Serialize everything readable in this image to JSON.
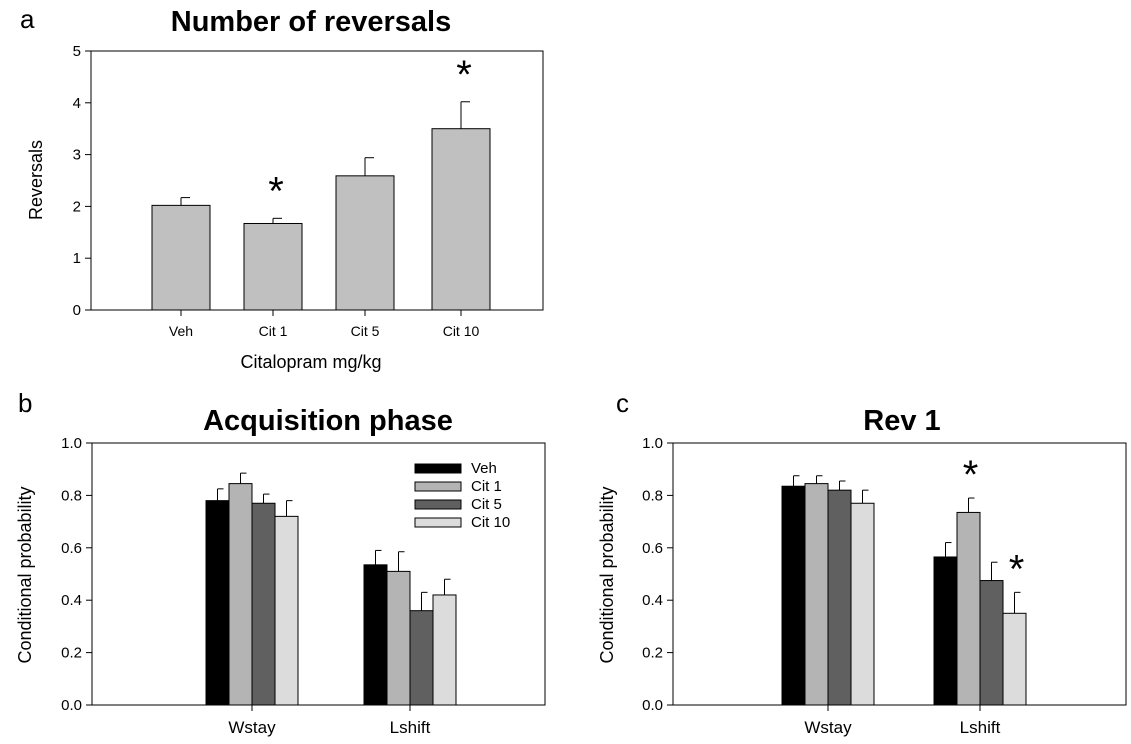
{
  "chart_data": [
    {
      "type": "bar",
      "panel": "a",
      "title": "Number of reversals",
      "xlabel": "Citalopram mg/kg",
      "ylabel": "Reversals",
      "ylim": [
        0,
        5
      ],
      "yticks": [
        "0",
        "1",
        "2",
        "3",
        "4",
        "5"
      ],
      "categories": [
        "Veh",
        "Cit 1",
        "Cit 5",
        "Cit 10"
      ],
      "values": [
        2.02,
        1.67,
        2.59,
        3.5
      ],
      "errors": [
        0.15,
        0.1,
        0.35,
        0.52
      ],
      "significant": [
        false,
        true,
        false,
        true
      ],
      "significance_marker": "*",
      "bar_color": "#c0c0c0",
      "grid": false
    },
    {
      "type": "bar",
      "panel": "b",
      "title": "Acquisition phase",
      "xlabel": "",
      "ylabel": "Conditional probability",
      "ylim": [
        0,
        1
      ],
      "yticks": [
        "0.0",
        "0.2",
        "0.4",
        "0.6",
        "0.8",
        "1.0"
      ],
      "categories": [
        "Wstay",
        "Lshift"
      ],
      "series": [
        {
          "name": "Veh",
          "color": "#000000",
          "values": [
            0.78,
            0.535
          ],
          "errors": [
            0.045,
            0.055
          ],
          "significant": [
            false,
            false
          ]
        },
        {
          "name": "Cit 1",
          "color": "#b4b4b4",
          "values": [
            0.845,
            0.51
          ],
          "errors": [
            0.04,
            0.075
          ],
          "significant": [
            false,
            false
          ]
        },
        {
          "name": "Cit 5",
          "color": "#606060",
          "values": [
            0.77,
            0.36
          ],
          "errors": [
            0.035,
            0.07
          ],
          "significant": [
            false,
            false
          ]
        },
        {
          "name": "Cit 10",
          "color": "#dcdcdc",
          "values": [
            0.72,
            0.42
          ],
          "errors": [
            0.06,
            0.06
          ],
          "significant": [
            false,
            false
          ]
        }
      ],
      "legend_position": "top-right",
      "grid": false
    },
    {
      "type": "bar",
      "panel": "c",
      "title": "Rev 1",
      "xlabel": "",
      "ylabel": "Conditional probability",
      "ylim": [
        0,
        1
      ],
      "yticks": [
        "0.0",
        "0.2",
        "0.4",
        "0.6",
        "0.8",
        "1.0"
      ],
      "categories": [
        "Wstay",
        "Lshift"
      ],
      "series": [
        {
          "name": "Veh",
          "color": "#000000",
          "values": [
            0.835,
            0.565
          ],
          "errors": [
            0.04,
            0.055
          ],
          "significant": [
            false,
            false
          ]
        },
        {
          "name": "Cit 1",
          "color": "#b4b4b4",
          "values": [
            0.845,
            0.735
          ],
          "errors": [
            0.03,
            0.055
          ],
          "significant": [
            false,
            true
          ]
        },
        {
          "name": "Cit 5",
          "color": "#606060",
          "values": [
            0.82,
            0.475
          ],
          "errors": [
            0.035,
            0.07
          ],
          "significant": [
            false,
            false
          ]
        },
        {
          "name": "Cit 10",
          "color": "#dcdcdc",
          "values": [
            0.77,
            0.35
          ],
          "errors": [
            0.05,
            0.08
          ],
          "significant": [
            false,
            true
          ]
        }
      ],
      "significance_marker": "*",
      "grid": false
    }
  ]
}
